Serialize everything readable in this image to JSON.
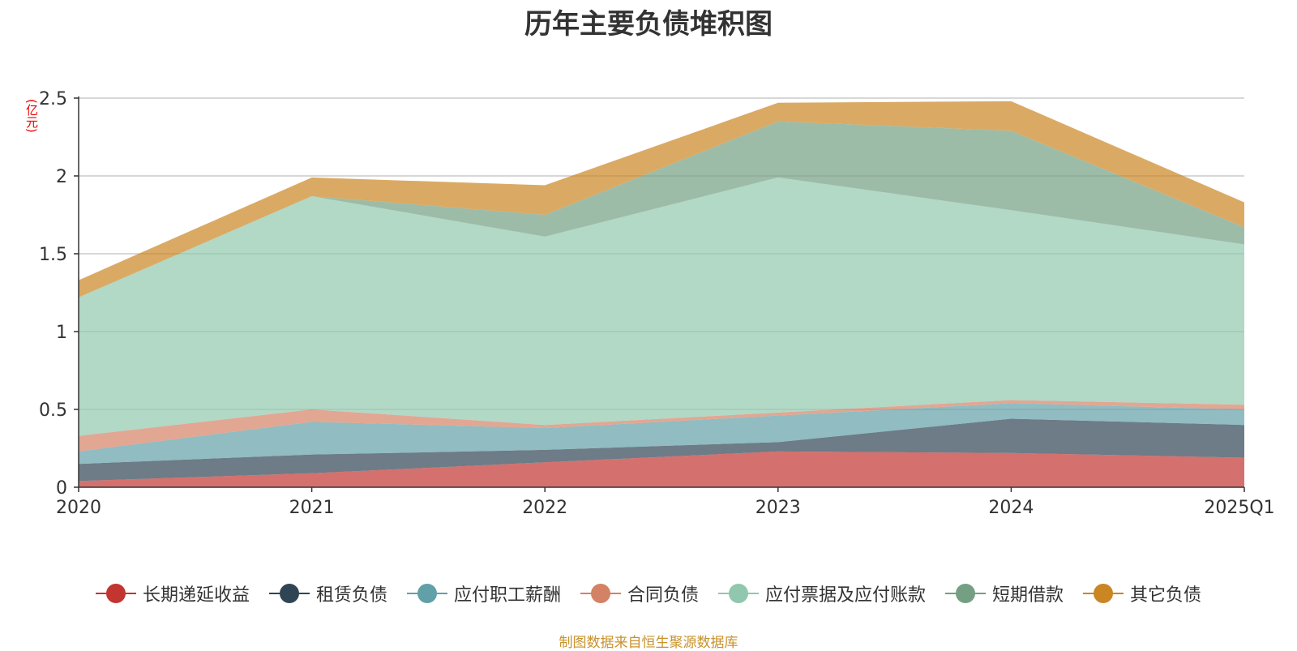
{
  "chart_data": {
    "type": "area",
    "stacked": true,
    "title": "历年主要负债堆积图",
    "unit_label": "(亿元)",
    "categories": [
      "2020",
      "2021",
      "2022",
      "2023",
      "2024",
      "2025Q1"
    ],
    "ylim": [
      0,
      2.5
    ],
    "yticks": [
      {
        "value": 0,
        "label": "0"
      },
      {
        "value": 0.5,
        "label": "0.5"
      },
      {
        "value": 1,
        "label": "1"
      },
      {
        "value": 1.5,
        "label": "1.5"
      },
      {
        "value": 2,
        "label": "2"
      },
      {
        "value": 2.5,
        "label": "2.5"
      }
    ],
    "grid": true,
    "legend_position": "bottom",
    "series": [
      {
        "name": "长期递延收益",
        "color": "#c23531",
        "values": [
          0.04,
          0.09,
          0.16,
          0.23,
          0.22,
          0.19
        ]
      },
      {
        "name": "租赁负债",
        "color": "#2f4554",
        "values": [
          0.11,
          0.12,
          0.08,
          0.06,
          0.22,
          0.21
        ]
      },
      {
        "name": "应付职工薪酬",
        "color": "#61a0a8",
        "values": [
          0.08,
          0.21,
          0.14,
          0.17,
          0.1,
          0.1
        ]
      },
      {
        "name": "合同负债",
        "color": "#d48265",
        "values": [
          0.1,
          0.08,
          0.02,
          0.02,
          0.02,
          0.03
        ]
      },
      {
        "name": "应付票据及应付账款",
        "color": "#91c7ae",
        "values": [
          0.89,
          1.37,
          1.21,
          1.51,
          1.22,
          1.03
        ]
      },
      {
        "name": "短期借款",
        "color": "#749f83",
        "values": [
          0.0,
          0.0,
          0.14,
          0.36,
          0.51,
          0.11
        ]
      },
      {
        "name": "其它负债",
        "color": "#ca8622",
        "values": [
          0.11,
          0.12,
          0.19,
          0.12,
          0.19,
          0.16
        ]
      }
    ],
    "source_note": "制图数据来自恒生聚源数据库"
  }
}
